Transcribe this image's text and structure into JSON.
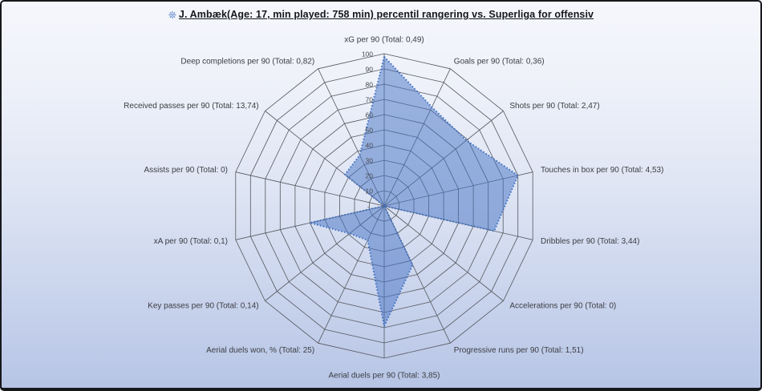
{
  "title": {
    "text": "J. Ambæk(Age: 17, min played: 758 min) percentil rangering vs. Superliga for offensiv",
    "icon": "❊"
  },
  "chart_data": {
    "type": "radar",
    "title": "J. Ambæk(Age: 17, min played: 758 min) percentil rangering vs. Superliga for offensiv",
    "categories": [
      "xG per 90 (Total: 0,49)",
      "Goals per 90 (Total: 0,36)",
      "Shots per 90 (Total: 2,47)",
      "Touches in box per 90 (Total: 4,53)",
      "Dribbles per 90 (Total: 3,44)",
      "Accelerations per 90 (Total: 0)",
      "Progressive runs per 90 (Total: 1,51)",
      "Aerial duels per 90 (Total: 3,85)",
      "Aerial duels won, % (Total: 25)",
      "Key passes per 90 (Total: 0,14)",
      "xA per 90 (Total: 0,1)",
      "Assists per 90 (Total: 0)",
      "Received passes per 90 (Total: 13,74)",
      "Deep completions per 90 (Total: 0,82)"
    ],
    "values": [
      98,
      72,
      69,
      90,
      74,
      0,
      43,
      79,
      25,
      29,
      50,
      0,
      33,
      37
    ],
    "axis_ticks": [
      "-",
      "10",
      "20",
      "30",
      "40",
      "50",
      "60",
      "70",
      "80",
      "90",
      "100"
    ],
    "axis_range": [
      0,
      100
    ],
    "grid": true,
    "legend": "none",
    "accent_color": "#4472C4",
    "fill_color": "rgba(68,114,196,0.5)",
    "grid_color": "#55585e"
  }
}
